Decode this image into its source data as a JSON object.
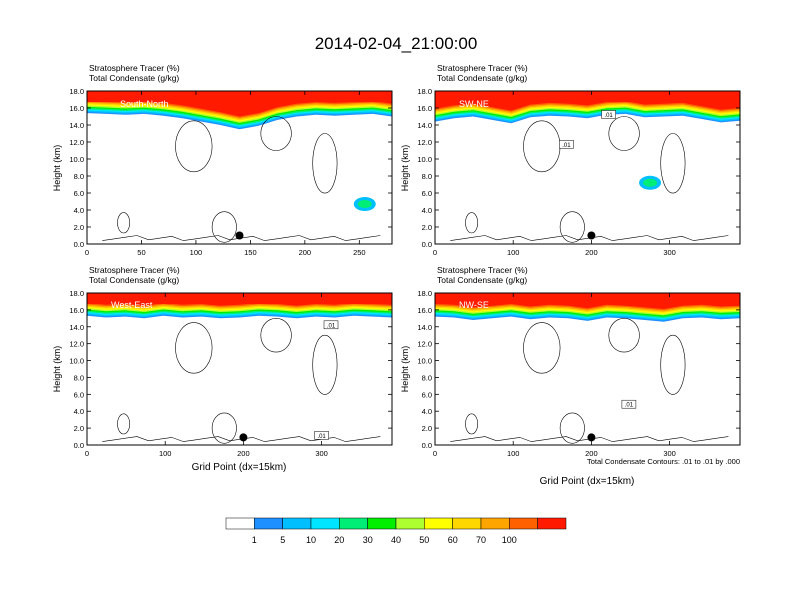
{
  "title": "2014-02-04_21:00:00",
  "colors": {
    "levels": [
      "#ffffff",
      "#1e90ff",
      "#00bfff",
      "#00e5ff",
      "#00ee76",
      "#00ee00",
      "#adff2f",
      "#ffff00",
      "#ffd700",
      "#ffa500",
      "#ff6000",
      "#ff1a00"
    ]
  },
  "colorbar": {
    "labels": [
      "1",
      "5",
      "10",
      "20",
      "30",
      "40",
      "50",
      "60",
      "70",
      "100"
    ]
  },
  "footnote": "Total Condensate Contours: .01 to .01 by .000",
  "chart_data": [
    {
      "type": "contour",
      "id": "south-north",
      "title_line1": "Stratosphere Tracer   (%)",
      "title_line2": "Total Condensate   (g/kg)",
      "label": "South-North",
      "xlabel": "",
      "ylabel": "Height (km)",
      "xlim": [
        0,
        280
      ],
      "ylim": [
        0,
        18
      ],
      "xticks": [
        0,
        50,
        100,
        150,
        200,
        250
      ],
      "yticks": [
        "0.0",
        "2.0",
        "4.0",
        "6.0",
        "8.0",
        "10.0",
        "12.0",
        "14.0",
        "16.0",
        "18.0"
      ],
      "tracer_base_km": [
        15.4,
        15.3,
        15.2,
        15.3,
        15.1,
        14.8,
        14.4,
        14.0,
        13.5,
        13.9,
        14.6,
        15.0,
        15.2,
        15.1,
        15.2,
        15.3,
        15.0
      ],
      "marker": {
        "x": 140,
        "y": 1.0
      },
      "contour_labels": [],
      "blob": {
        "x": 255,
        "y": 4.7
      }
    },
    {
      "type": "contour",
      "id": "sw-ne",
      "title_line1": "Stratosphere Tracer   (%)",
      "title_line2": "Total Condensate   (g/kg)",
      "label": "SW-NE",
      "xlabel": "",
      "ylabel": "Height (km)",
      "xlim": [
        0,
        390
      ],
      "ylim": [
        0,
        18
      ],
      "xticks": [
        0,
        100,
        200,
        300
      ],
      "yticks": [
        "0.0",
        "2.0",
        "4.0",
        "6.0",
        "8.0",
        "10.0",
        "12.0",
        "14.0",
        "16.0",
        "18.0"
      ],
      "tracer_base_km": [
        14.4,
        14.8,
        15.0,
        14.6,
        14.2,
        14.9,
        15.1,
        15.0,
        14.8,
        15.2,
        15.3,
        14.9,
        15.0,
        15.1,
        14.7,
        14.3,
        14.5
      ],
      "marker": {
        "x": 200,
        "y": 1.0
      },
      "contour_labels": [
        {
          "text": ".01",
          "x": 168,
          "y": 11.5
        },
        {
          "text": ".01",
          "x": 222,
          "y": 15.0
        }
      ],
      "blob": {
        "x": 275,
        "y": 7.2
      }
    },
    {
      "type": "contour",
      "id": "west-east",
      "title_line1": "Stratosphere Tracer   (%)",
      "title_line2": "Total Condensate   (g/kg)",
      "label": "West-East",
      "xlabel": "Grid Point (dx=15km)",
      "ylabel": "Height (km)",
      "xlim": [
        0,
        390
      ],
      "ylim": [
        0,
        18
      ],
      "xticks": [
        0,
        100,
        200,
        300
      ],
      "yticks": [
        "0.0",
        "2.0",
        "4.0",
        "6.0",
        "8.0",
        "10.0",
        "12.0",
        "14.0",
        "16.0",
        "18.0"
      ],
      "tracer_base_km": [
        15.3,
        15.1,
        15.2,
        15.0,
        15.3,
        15.1,
        15.2,
        15.0,
        15.1,
        15.3,
        15.2,
        15.0,
        15.2,
        15.1,
        15.3,
        15.2,
        15.1
      ],
      "marker": {
        "x": 200,
        "y": 0.9
      },
      "contour_labels": [
        {
          "text": ".01",
          "x": 312,
          "y": 14.0
        },
        {
          "text": ".01",
          "x": 300,
          "y": 0.9
        }
      ],
      "blob": null
    },
    {
      "type": "contour",
      "id": "nw-se",
      "title_line1": "Stratosphere Tracer   (%)",
      "title_line2": "Total Condensate   (g/kg)",
      "label": "NW-SE",
      "xlabel": "Grid Point (dx=15km)",
      "ylabel": "Height (km)",
      "xlim": [
        0,
        390
      ],
      "ylim": [
        0,
        18
      ],
      "xticks": [
        0,
        100,
        200,
        300
      ],
      "yticks": [
        "0.0",
        "2.0",
        "4.0",
        "6.0",
        "8.0",
        "10.0",
        "12.0",
        "14.0",
        "16.0",
        "18.0"
      ],
      "tracer_base_km": [
        15.2,
        15.1,
        14.8,
        15.0,
        15.2,
        14.9,
        15.1,
        15.0,
        14.7,
        15.1,
        15.0,
        14.8,
        14.6,
        15.0,
        15.1,
        14.9,
        15.0
      ],
      "marker": {
        "x": 200,
        "y": 0.9
      },
      "contour_labels": [
        {
          "text": ".01",
          "x": 248,
          "y": 4.6
        }
      ],
      "blob": null
    }
  ]
}
